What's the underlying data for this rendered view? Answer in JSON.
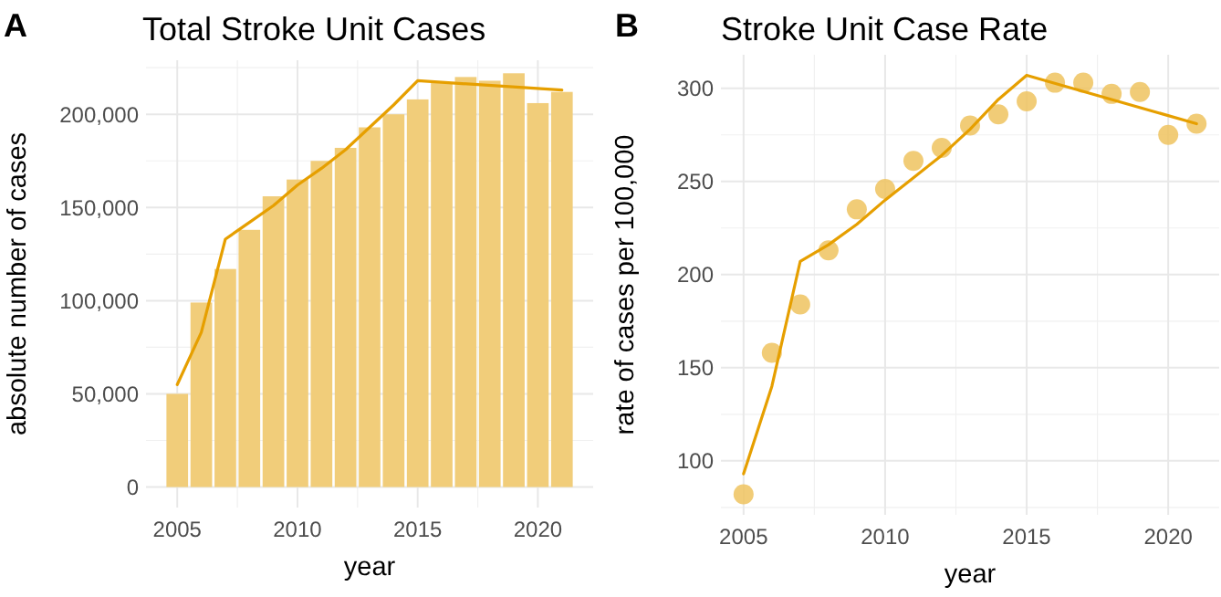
{
  "chart_data": [
    {
      "type": "bar",
      "title": "Total Stroke Unit Cases",
      "xlabel": "year",
      "ylabel": "absolute number of cases",
      "annotations": [
        "A"
      ],
      "grid": true,
      "x": [
        2005,
        2006,
        2007,
        2008,
        2009,
        2010,
        2011,
        2012,
        2013,
        2014,
        2015,
        2016,
        2017,
        2018,
        2019,
        2020,
        2021
      ],
      "xlim": [
        2003.7,
        2022.3
      ],
      "xticks": [
        2005,
        2010,
        2015,
        2020
      ],
      "ylim": [
        -11000,
        229000
      ],
      "yticks": [
        0,
        {
          "value": 50000,
          "label": "50,000"
        },
        {
          "value": 100000,
          "label": "100,000"
        },
        {
          "value": 150000,
          "label": "150,000"
        },
        {
          "value": 200000,
          "label": "200,000"
        }
      ],
      "series": [
        {
          "color": "#f1cd7a",
          "values": [
            50000,
            99000,
            117000,
            138000,
            156000,
            165000,
            175000,
            182000,
            193000,
            200000,
            208000,
            217000,
            220000,
            218000,
            222000,
            206000,
            212000
          ]
        },
        {
          "type": "line",
          "color": "#e69f00",
          "x": [
            2005,
            2006,
            2007,
            2008,
            2009,
            2010,
            2011,
            2012,
            2013,
            2014,
            2015,
            2021
          ],
          "values": [
            55000,
            83000,
            133000,
            142000,
            151000,
            162000,
            171000,
            181000,
            193000,
            205000,
            218000,
            213000
          ]
        }
      ]
    },
    {
      "type": "scatter",
      "title": "Stroke Unit Case Rate",
      "xlabel": "year",
      "ylabel": "rate of cases per 100,000",
      "annotations": [
        "B"
      ],
      "grid": true,
      "x": [
        2005,
        2006,
        2007,
        2008,
        2009,
        2010,
        2011,
        2012,
        2013,
        2014,
        2015,
        2016,
        2017,
        2018,
        2019,
        2020,
        2021
      ],
      "xlim": [
        2004.2,
        2021.8
      ],
      "xticks": [
        2005,
        2010,
        2015,
        2020
      ],
      "ylim": [
        71,
        318
      ],
      "yticks": [
        100,
        150,
        200,
        250,
        300
      ],
      "series": [
        {
          "color": "#efc35f",
          "values": [
            82,
            158,
            184,
            213,
            235,
            246,
            261,
            268,
            280,
            286,
            293,
            303,
            303,
            297,
            298,
            275,
            281
          ]
        },
        {
          "type": "line",
          "color": "#e69f00",
          "x": [
            2005,
            2006,
            2007,
            2008,
            2009,
            2010,
            2011,
            2012,
            2013,
            2014,
            2015,
            2021
          ],
          "values": [
            93,
            140,
            207,
            216,
            227,
            240,
            252,
            264,
            278,
            294,
            307,
            281
          ]
        }
      ]
    }
  ]
}
